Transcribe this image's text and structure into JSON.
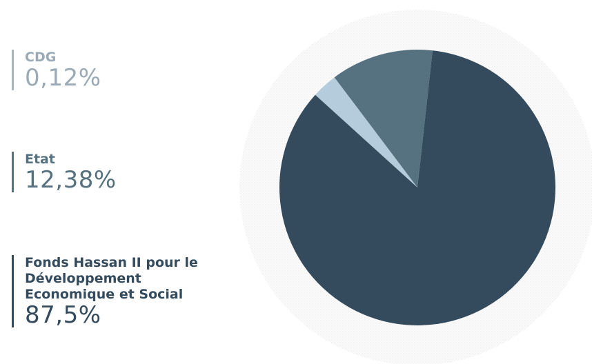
{
  "chart_data": {
    "type": "pie",
    "slices": [
      {
        "label": "CDG",
        "value_text": "0,12%",
        "value": 0.12,
        "color": "#b4ccdc"
      },
      {
        "label": "Etat",
        "value_text": "12,38%",
        "value": 12.38,
        "color": "#56717f"
      },
      {
        "label": "Fonds Hassan II pour le Développement Economique et Social",
        "value_text": "87,5%",
        "value": 87.5,
        "color": "#344b5e"
      }
    ],
    "legend_placement": "left"
  }
}
